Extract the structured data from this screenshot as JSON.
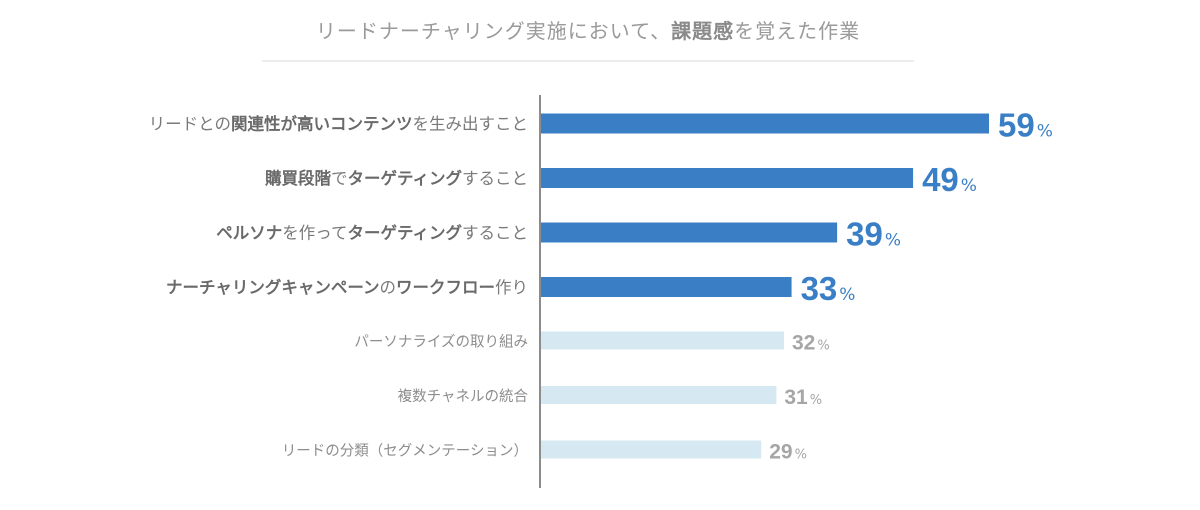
{
  "title": {
    "segments": [
      {
        "text": "リードナーチャリング実施において、",
        "bold": false
      },
      {
        "text": "課題感",
        "bold": true
      },
      {
        "text": "を覚えた作業",
        "bold": false
      }
    ]
  },
  "colors": {
    "highlight_bar": "#3a7fc5",
    "normal_bar": "#d6e8f2",
    "highlight_value": "#3a7fc5",
    "normal_value": "#a6a6a6",
    "axis": "#8c8c8c",
    "title_rule": "#d9d9d9"
  },
  "chart_data": {
    "type": "bar",
    "orientation": "horizontal",
    "title": "リードナーチャリング実施において、課題感を覚えた作業",
    "unit": "%",
    "categories": [
      "リードとの関連性が高いコンテンツを生み出すこと",
      "購買段階でターゲティングすること",
      "ペルソナを作ってターゲティングすること",
      "ナーチャリングキャンペーンのワークフロー作り",
      "パーソナライズの取り組み",
      "複数チャネルの統合",
      "リードの分類（セグメンテーション）"
    ],
    "category_segments": [
      [
        {
          "text": "リードとの",
          "bold": false
        },
        {
          "text": "関連性が高いコンテンツ",
          "bold": true
        },
        {
          "text": "を生み出すこと",
          "bold": false
        }
      ],
      [
        {
          "text": "購買段階",
          "bold": true
        },
        {
          "text": "で",
          "bold": false
        },
        {
          "text": "ターゲティング",
          "bold": true
        },
        {
          "text": "すること",
          "bold": false
        }
      ],
      [
        {
          "text": "ペルソナ",
          "bold": true
        },
        {
          "text": "を作って",
          "bold": false
        },
        {
          "text": "ターゲティング",
          "bold": true
        },
        {
          "text": "すること",
          "bold": false
        }
      ],
      [
        {
          "text": "ナーチャリングキャンペーン",
          "bold": true
        },
        {
          "text": "の",
          "bold": false
        },
        {
          "text": "ワークフロー",
          "bold": true
        },
        {
          "text": "作り",
          "bold": false
        }
      ],
      [
        {
          "text": "パーソナライズの取り組み",
          "bold": false
        }
      ],
      [
        {
          "text": "複数チャネルの統合",
          "bold": false
        }
      ],
      [
        {
          "text": "リードの分類（セグメンテーション）",
          "bold": false
        }
      ]
    ],
    "values": [
      59,
      49,
      39,
      33,
      32,
      31,
      29
    ],
    "value_labels": [
      "59",
      "49",
      "39",
      "33",
      "32",
      "31",
      "29"
    ],
    "highlighted": [
      true,
      true,
      true,
      true,
      false,
      false,
      false
    ],
    "xlim": [
      0,
      60
    ],
    "grid": false,
    "legend": "none"
  }
}
